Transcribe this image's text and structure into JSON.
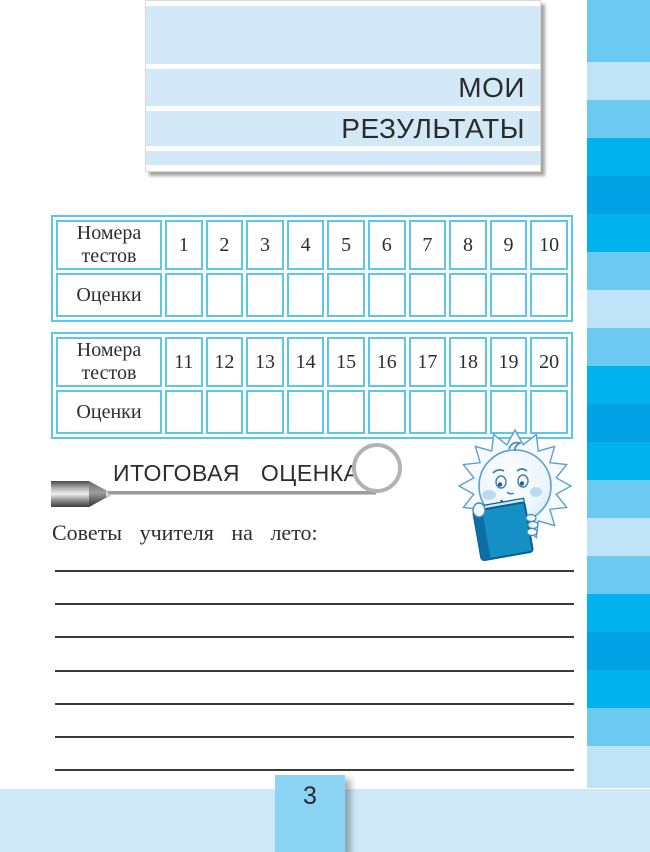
{
  "header": {
    "title_line1": "МОИ",
    "title_line2": "РЕЗУЛЬТАТЫ"
  },
  "tables": [
    {
      "row1_header": "Номера тестов",
      "row2_header": "Оценки",
      "numbers": [
        "1",
        "2",
        "3",
        "4",
        "5",
        "6",
        "7",
        "8",
        "9",
        "10"
      ],
      "grades": [
        "",
        "",
        "",
        "",
        "",
        "",
        "",
        "",
        "",
        ""
      ]
    },
    {
      "row1_header": "Номера тестов",
      "row2_header": "Оценки",
      "numbers": [
        "11",
        "12",
        "13",
        "14",
        "15",
        "16",
        "17",
        "18",
        "19",
        "20"
      ],
      "grades": [
        "",
        "",
        "",
        "",
        "",
        "",
        "",
        "",
        "",
        ""
      ]
    }
  ],
  "final_grade": {
    "label": "ИТОГОВАЯ  ОЦЕНКА",
    "value": ""
  },
  "advice": {
    "label": "Советы  учителя  на  лето:",
    "line_count": 7
  },
  "footer": {
    "page_number": "3"
  },
  "icons": {
    "pencil_icon": "gray marker pencil pointing right",
    "final_grade_circle": "empty ring for writing the final grade",
    "sun_reader_illustration": "smiling sun character reading a blue book"
  },
  "colors": {
    "stripe_pale": "#bfe3f7",
    "stripe_medium": "#6cc9f1",
    "stripe_bright": "#00b3ee",
    "stripe_deep": "#00a2e6",
    "header_stripe": "#d4e9f8",
    "table_border": "#5bc6ef",
    "footer_band": "#cfe9f8",
    "page_tab": "#8cd4f4",
    "text_dark": "#2b2b2b"
  },
  "sidebar": {
    "stripes": [
      "medium",
      "pale",
      "medium",
      "bright",
      "deep",
      "bright",
      "medium",
      "pale",
      "medium",
      "bright",
      "deep",
      "bright",
      "medium",
      "pale",
      "medium",
      "bright",
      "deep",
      "bright",
      "medium",
      "pale"
    ],
    "heights": [
      62,
      38,
      38,
      38,
      38,
      38,
      38,
      38,
      38,
      38,
      38,
      38,
      38,
      38,
      38,
      38,
      38,
      38,
      38,
      42
    ]
  }
}
